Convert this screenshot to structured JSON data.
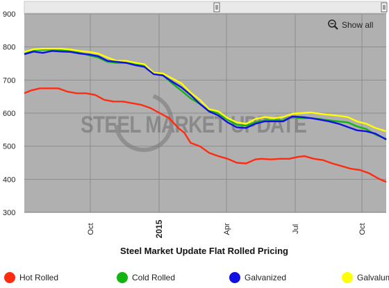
{
  "chart_data": {
    "type": "line",
    "title": "Steel Market Update Flat Rolled Pricing",
    "show_all_label": "Show all",
    "watermark": "STEEL MARKET UPDATE",
    "y_ticks": [
      300,
      400,
      500,
      600,
      700,
      800,
      900
    ],
    "ylim": [
      300,
      900
    ],
    "x_ticks": [
      "Oct",
      "2015",
      "Apr",
      "Jul",
      "Oct"
    ],
    "grid": true,
    "legend_position": "bottom",
    "colors": {
      "Hot Rolled": "#ff2b10",
      "Cold Rolled": "#11b411",
      "Galvanized": "#1010e0",
      "Galvalume": "#ffff00",
      "plot_bg": "#b0b0b0",
      "grid": "#8c8c8c",
      "scroll_bg": "#e9e9e9"
    },
    "series": [
      {
        "name": "Hot Rolled",
        "points": [
          [
            0.0,
            660
          ],
          [
            0.2,
            668
          ],
          [
            0.5,
            675
          ],
          [
            0.8,
            675
          ],
          [
            1.1,
            675
          ],
          [
            1.4,
            665
          ],
          [
            1.7,
            660
          ],
          [
            2.0,
            660
          ],
          [
            2.3,
            655
          ],
          [
            2.6,
            640
          ],
          [
            2.9,
            635
          ],
          [
            3.2,
            635
          ],
          [
            3.5,
            630
          ],
          [
            3.8,
            625
          ],
          [
            4.1,
            615
          ],
          [
            4.4,
            600
          ],
          [
            4.7,
            585
          ],
          [
            5.0,
            555
          ],
          [
            5.2,
            540
          ],
          [
            5.4,
            510
          ],
          [
            5.7,
            500
          ],
          [
            6.0,
            480
          ],
          [
            6.3,
            470
          ],
          [
            6.6,
            462
          ],
          [
            6.9,
            450
          ],
          [
            7.2,
            448
          ],
          [
            7.5,
            460
          ],
          [
            7.7,
            462
          ],
          [
            8.0,
            460
          ],
          [
            8.3,
            462
          ],
          [
            8.6,
            462
          ],
          [
            8.9,
            468
          ],
          [
            9.1,
            470
          ],
          [
            9.4,
            462
          ],
          [
            9.7,
            458
          ],
          [
            10.0,
            448
          ],
          [
            10.3,
            440
          ],
          [
            10.6,
            432
          ],
          [
            10.9,
            428
          ],
          [
            11.2,
            418
          ],
          [
            11.5,
            402
          ],
          [
            11.75,
            392
          ]
        ]
      },
      {
        "name": "Cold Rolled",
        "points": [
          [
            0.0,
            780
          ],
          [
            0.3,
            790
          ],
          [
            0.6,
            792
          ],
          [
            0.9,
            792
          ],
          [
            1.2,
            790
          ],
          [
            1.5,
            788
          ],
          [
            1.8,
            782
          ],
          [
            2.1,
            775
          ],
          [
            2.4,
            768
          ],
          [
            2.7,
            755
          ],
          [
            3.0,
            752
          ],
          [
            3.3,
            752
          ],
          [
            3.6,
            750
          ],
          [
            3.9,
            742
          ],
          [
            4.2,
            718
          ],
          [
            4.5,
            715
          ],
          [
            4.8,
            690
          ],
          [
            5.1,
            668
          ],
          [
            5.4,
            645
          ],
          [
            5.7,
            628
          ],
          [
            6.0,
            608
          ],
          [
            6.3,
            600
          ],
          [
            6.6,
            580
          ],
          [
            6.9,
            565
          ],
          [
            7.2,
            562
          ],
          [
            7.5,
            572
          ],
          [
            7.8,
            578
          ],
          [
            8.1,
            578
          ],
          [
            8.4,
            578
          ],
          [
            8.7,
            588
          ],
          [
            9.0,
            585
          ],
          [
            9.3,
            585
          ],
          [
            9.6,
            582
          ],
          [
            9.9,
            578
          ],
          [
            10.2,
            575
          ],
          [
            10.5,
            572
          ],
          [
            10.8,
            560
          ],
          [
            11.1,
            552
          ],
          [
            11.4,
            535
          ],
          [
            11.75,
            522
          ]
        ]
      },
      {
        "name": "Galvanized",
        "points": [
          [
            0.0,
            778
          ],
          [
            0.3,
            786
          ],
          [
            0.6,
            782
          ],
          [
            0.9,
            788
          ],
          [
            1.2,
            786
          ],
          [
            1.5,
            785
          ],
          [
            1.8,
            780
          ],
          [
            2.1,
            777
          ],
          [
            2.4,
            772
          ],
          [
            2.7,
            758
          ],
          [
            3.0,
            755
          ],
          [
            3.3,
            752
          ],
          [
            3.6,
            745
          ],
          [
            3.9,
            740
          ],
          [
            4.2,
            718
          ],
          [
            4.5,
            714
          ],
          [
            4.8,
            695
          ],
          [
            5.1,
            678
          ],
          [
            5.4,
            655
          ],
          [
            5.7,
            628
          ],
          [
            6.0,
            605
          ],
          [
            6.3,
            593
          ],
          [
            6.6,
            572
          ],
          [
            6.9,
            557
          ],
          [
            7.2,
            555
          ],
          [
            7.5,
            568
          ],
          [
            7.8,
            575
          ],
          [
            8.1,
            575
          ],
          [
            8.4,
            575
          ],
          [
            8.7,
            590
          ],
          [
            9.0,
            588
          ],
          [
            9.3,
            585
          ],
          [
            9.6,
            580
          ],
          [
            9.9,
            575
          ],
          [
            10.2,
            568
          ],
          [
            10.5,
            558
          ],
          [
            10.8,
            548
          ],
          [
            11.1,
            545
          ],
          [
            11.4,
            538
          ],
          [
            11.75,
            520
          ]
        ]
      },
      {
        "name": "Galvalume",
        "points": [
          [
            0.0,
            785
          ],
          [
            0.3,
            793
          ],
          [
            0.6,
            795
          ],
          [
            0.9,
            795
          ],
          [
            1.2,
            795
          ],
          [
            1.5,
            792
          ],
          [
            1.8,
            788
          ],
          [
            2.1,
            785
          ],
          [
            2.4,
            780
          ],
          [
            2.7,
            768
          ],
          [
            3.0,
            758
          ],
          [
            3.3,
            758
          ],
          [
            3.6,
            752
          ],
          [
            3.9,
            748
          ],
          [
            4.2,
            722
          ],
          [
            4.5,
            720
          ],
          [
            4.8,
            705
          ],
          [
            5.1,
            690
          ],
          [
            5.4,
            662
          ],
          [
            5.7,
            640
          ],
          [
            6.0,
            612
          ],
          [
            6.3,
            605
          ],
          [
            6.6,
            585
          ],
          [
            6.9,
            572
          ],
          [
            7.2,
            568
          ],
          [
            7.5,
            582
          ],
          [
            7.8,
            588
          ],
          [
            8.1,
            585
          ],
          [
            8.4,
            588
          ],
          [
            8.7,
            598
          ],
          [
            9.0,
            600
          ],
          [
            9.3,
            602
          ],
          [
            9.6,
            598
          ],
          [
            9.9,
            595
          ],
          [
            10.2,
            592
          ],
          [
            10.5,
            588
          ],
          [
            10.8,
            575
          ],
          [
            11.1,
            568
          ],
          [
            11.4,
            555
          ],
          [
            11.75,
            545
          ]
        ]
      }
    ]
  }
}
